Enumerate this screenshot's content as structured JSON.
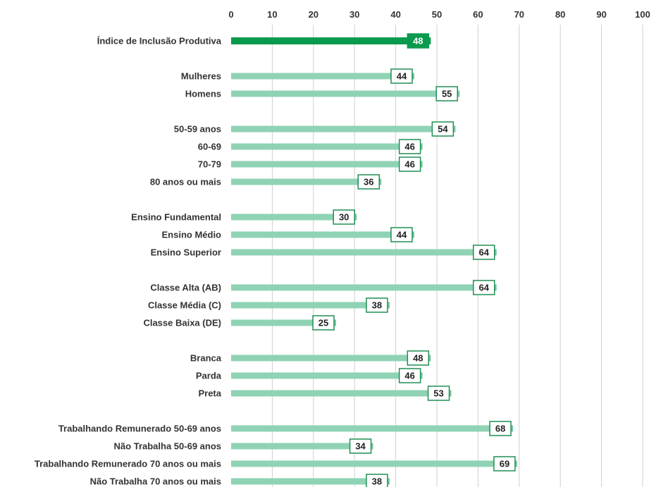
{
  "chart_data": {
    "type": "bar",
    "orientation": "horizontal",
    "xlim": [
      0,
      100
    ],
    "x_ticks": [
      "0",
      "10",
      "20",
      "30",
      "40",
      "50",
      "60",
      "70",
      "80",
      "90",
      "100"
    ],
    "grid": true,
    "categories": [
      "Índice de Inclusão Produtiva",
      "Mulheres",
      "Homens",
      "50-59 anos",
      "60-69",
      "70-79",
      "80 anos ou mais",
      "Ensino Fundamental",
      "Ensino Médio",
      "Ensino Superior",
      "Classe Alta (AB)",
      "Classe Média (C)",
      "Classe Baixa (DE)",
      "Branca",
      "Parda",
      "Preta",
      "Trabalhando Remunerado 50-69 anos",
      "Não Trabalha 50-69 anos",
      "Trabalhando Remunerado 70 anos ou mais",
      "Não Trabalha 70 anos ou mais"
    ],
    "values": [
      48,
      44,
      55,
      54,
      46,
      46,
      36,
      30,
      44,
      64,
      64,
      38,
      25,
      48,
      46,
      53,
      68,
      34,
      69,
      38
    ],
    "groups": [
      [
        0
      ],
      [
        1,
        2
      ],
      [
        3,
        4,
        5,
        6
      ],
      [
        7,
        8,
        9
      ],
      [
        10,
        11,
        12
      ],
      [
        13,
        14,
        15
      ],
      [
        16,
        17,
        18,
        19
      ]
    ],
    "highlight_index": 0,
    "colors": {
      "highlight": "#0a9a4e",
      "bar": "#8fd3b4",
      "bar_end": "#76c8a2",
      "label_border": "#1f8f52",
      "grid": "#cfcfcf"
    }
  }
}
